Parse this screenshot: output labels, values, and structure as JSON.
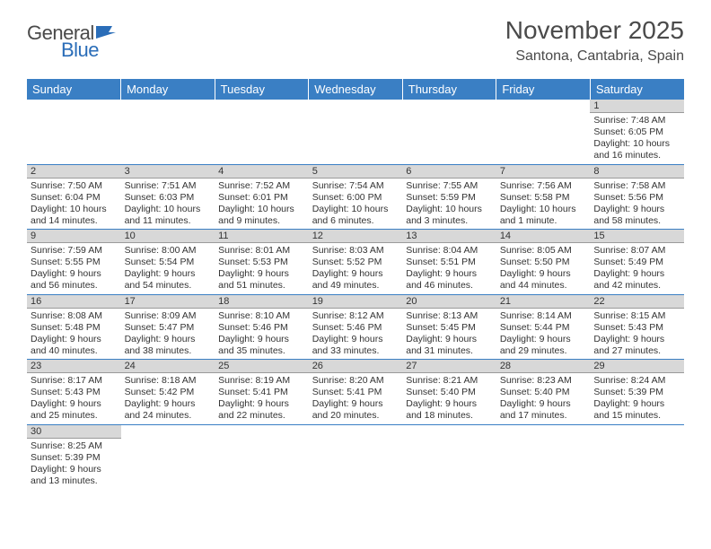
{
  "logo": {
    "general": "General",
    "blue": "Blue"
  },
  "title": "November 2025",
  "location": "Santona, Cantabria, Spain",
  "colors": {
    "header_bg": "#3a7fc4",
    "header_text": "#ffffff",
    "daynum_bg": "#d8d8d8",
    "row_divider": "#3a7fc4",
    "text": "#333333",
    "logo_gray": "#4a4a4a",
    "logo_blue": "#2a6db8"
  },
  "weekdays": [
    "Sunday",
    "Monday",
    "Tuesday",
    "Wednesday",
    "Thursday",
    "Friday",
    "Saturday"
  ],
  "weeks": [
    [
      null,
      null,
      null,
      null,
      null,
      null,
      {
        "n": "1",
        "sr": "Sunrise: 7:48 AM",
        "ss": "Sunset: 6:05 PM",
        "dl": "Daylight: 10 hours and 16 minutes."
      }
    ],
    [
      {
        "n": "2",
        "sr": "Sunrise: 7:50 AM",
        "ss": "Sunset: 6:04 PM",
        "dl": "Daylight: 10 hours and 14 minutes."
      },
      {
        "n": "3",
        "sr": "Sunrise: 7:51 AM",
        "ss": "Sunset: 6:03 PM",
        "dl": "Daylight: 10 hours and 11 minutes."
      },
      {
        "n": "4",
        "sr": "Sunrise: 7:52 AM",
        "ss": "Sunset: 6:01 PM",
        "dl": "Daylight: 10 hours and 9 minutes."
      },
      {
        "n": "5",
        "sr": "Sunrise: 7:54 AM",
        "ss": "Sunset: 6:00 PM",
        "dl": "Daylight: 10 hours and 6 minutes."
      },
      {
        "n": "6",
        "sr": "Sunrise: 7:55 AM",
        "ss": "Sunset: 5:59 PM",
        "dl": "Daylight: 10 hours and 3 minutes."
      },
      {
        "n": "7",
        "sr": "Sunrise: 7:56 AM",
        "ss": "Sunset: 5:58 PM",
        "dl": "Daylight: 10 hours and 1 minute."
      },
      {
        "n": "8",
        "sr": "Sunrise: 7:58 AM",
        "ss": "Sunset: 5:56 PM",
        "dl": "Daylight: 9 hours and 58 minutes."
      }
    ],
    [
      {
        "n": "9",
        "sr": "Sunrise: 7:59 AM",
        "ss": "Sunset: 5:55 PM",
        "dl": "Daylight: 9 hours and 56 minutes."
      },
      {
        "n": "10",
        "sr": "Sunrise: 8:00 AM",
        "ss": "Sunset: 5:54 PM",
        "dl": "Daylight: 9 hours and 54 minutes."
      },
      {
        "n": "11",
        "sr": "Sunrise: 8:01 AM",
        "ss": "Sunset: 5:53 PM",
        "dl": "Daylight: 9 hours and 51 minutes."
      },
      {
        "n": "12",
        "sr": "Sunrise: 8:03 AM",
        "ss": "Sunset: 5:52 PM",
        "dl": "Daylight: 9 hours and 49 minutes."
      },
      {
        "n": "13",
        "sr": "Sunrise: 8:04 AM",
        "ss": "Sunset: 5:51 PM",
        "dl": "Daylight: 9 hours and 46 minutes."
      },
      {
        "n": "14",
        "sr": "Sunrise: 8:05 AM",
        "ss": "Sunset: 5:50 PM",
        "dl": "Daylight: 9 hours and 44 minutes."
      },
      {
        "n": "15",
        "sr": "Sunrise: 8:07 AM",
        "ss": "Sunset: 5:49 PM",
        "dl": "Daylight: 9 hours and 42 minutes."
      }
    ],
    [
      {
        "n": "16",
        "sr": "Sunrise: 8:08 AM",
        "ss": "Sunset: 5:48 PM",
        "dl": "Daylight: 9 hours and 40 minutes."
      },
      {
        "n": "17",
        "sr": "Sunrise: 8:09 AM",
        "ss": "Sunset: 5:47 PM",
        "dl": "Daylight: 9 hours and 38 minutes."
      },
      {
        "n": "18",
        "sr": "Sunrise: 8:10 AM",
        "ss": "Sunset: 5:46 PM",
        "dl": "Daylight: 9 hours and 35 minutes."
      },
      {
        "n": "19",
        "sr": "Sunrise: 8:12 AM",
        "ss": "Sunset: 5:46 PM",
        "dl": "Daylight: 9 hours and 33 minutes."
      },
      {
        "n": "20",
        "sr": "Sunrise: 8:13 AM",
        "ss": "Sunset: 5:45 PM",
        "dl": "Daylight: 9 hours and 31 minutes."
      },
      {
        "n": "21",
        "sr": "Sunrise: 8:14 AM",
        "ss": "Sunset: 5:44 PM",
        "dl": "Daylight: 9 hours and 29 minutes."
      },
      {
        "n": "22",
        "sr": "Sunrise: 8:15 AM",
        "ss": "Sunset: 5:43 PM",
        "dl": "Daylight: 9 hours and 27 minutes."
      }
    ],
    [
      {
        "n": "23",
        "sr": "Sunrise: 8:17 AM",
        "ss": "Sunset: 5:43 PM",
        "dl": "Daylight: 9 hours and 25 minutes."
      },
      {
        "n": "24",
        "sr": "Sunrise: 8:18 AM",
        "ss": "Sunset: 5:42 PM",
        "dl": "Daylight: 9 hours and 24 minutes."
      },
      {
        "n": "25",
        "sr": "Sunrise: 8:19 AM",
        "ss": "Sunset: 5:41 PM",
        "dl": "Daylight: 9 hours and 22 minutes."
      },
      {
        "n": "26",
        "sr": "Sunrise: 8:20 AM",
        "ss": "Sunset: 5:41 PM",
        "dl": "Daylight: 9 hours and 20 minutes."
      },
      {
        "n": "27",
        "sr": "Sunrise: 8:21 AM",
        "ss": "Sunset: 5:40 PM",
        "dl": "Daylight: 9 hours and 18 minutes."
      },
      {
        "n": "28",
        "sr": "Sunrise: 8:23 AM",
        "ss": "Sunset: 5:40 PM",
        "dl": "Daylight: 9 hours and 17 minutes."
      },
      {
        "n": "29",
        "sr": "Sunrise: 8:24 AM",
        "ss": "Sunset: 5:39 PM",
        "dl": "Daylight: 9 hours and 15 minutes."
      }
    ],
    [
      {
        "n": "30",
        "sr": "Sunrise: 8:25 AM",
        "ss": "Sunset: 5:39 PM",
        "dl": "Daylight: 9 hours and 13 minutes."
      },
      null,
      null,
      null,
      null,
      null,
      null
    ]
  ]
}
